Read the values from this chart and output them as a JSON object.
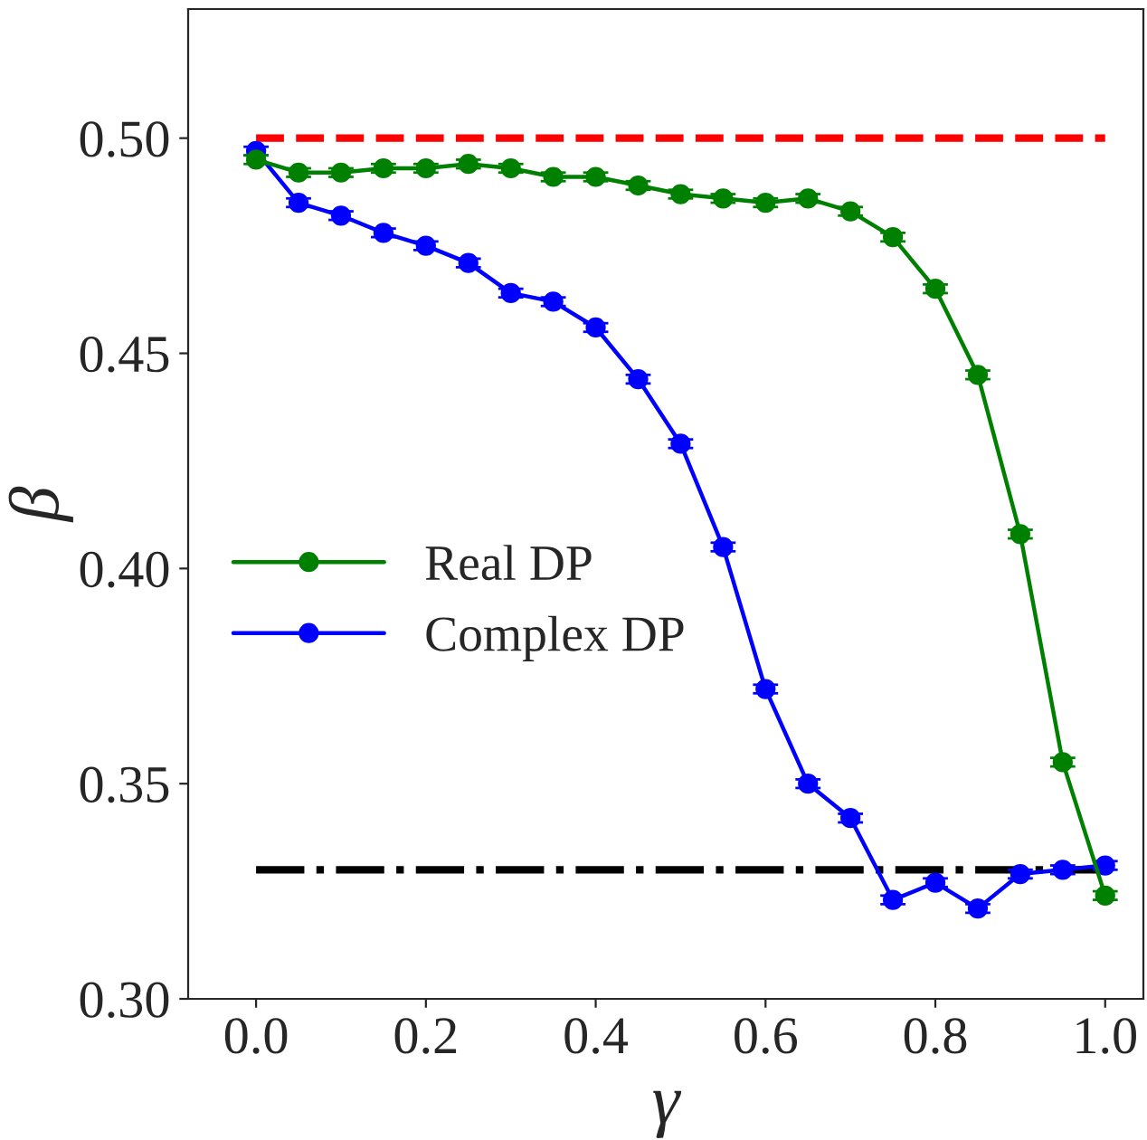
{
  "chart_data": {
    "type": "line",
    "xlabel": "γ",
    "ylabel": "β",
    "x": [
      0.0,
      0.05,
      0.1,
      0.15,
      0.2,
      0.25,
      0.3,
      0.35,
      0.4,
      0.45,
      0.5,
      0.55,
      0.6,
      0.65,
      0.7,
      0.75,
      0.8,
      0.85,
      0.9,
      0.95,
      1.0
    ],
    "series": [
      {
        "name": "Real DP",
        "color": "#008000",
        "values": [
          0.495,
          0.492,
          0.492,
          0.493,
          0.493,
          0.494,
          0.493,
          0.491,
          0.491,
          0.489,
          0.487,
          0.486,
          0.485,
          0.486,
          0.483,
          0.477,
          0.465,
          0.445,
          0.408,
          0.355,
          0.324
        ],
        "errors": [
          0.001,
          0.001,
          0.001,
          0.001,
          0.001,
          0.001,
          0.001,
          0.001,
          0.001,
          0.001,
          0.001,
          0.001,
          0.001,
          0.001,
          0.001,
          0.001,
          0.001,
          0.001,
          0.001,
          0.001,
          0.001
        ]
      },
      {
        "name": "Complex DP",
        "color": "#0000ff",
        "values": [
          0.497,
          0.485,
          0.482,
          0.478,
          0.475,
          0.471,
          0.464,
          0.462,
          0.456,
          0.444,
          0.429,
          0.405,
          0.372,
          0.35,
          0.342,
          0.323,
          0.327,
          0.321,
          0.329,
          0.33,
          0.331
        ],
        "errors": [
          0.001,
          0.001,
          0.001,
          0.001,
          0.001,
          0.001,
          0.001,
          0.001,
          0.001,
          0.001,
          0.001,
          0.001,
          0.001,
          0.001,
          0.001,
          0.001,
          0.001,
          0.001,
          0.001,
          0.001,
          0.001
        ]
      }
    ],
    "ref_lines": [
      {
        "axis": "y",
        "value": 0.5,
        "color": "#ff0000",
        "line_style": "dashed"
      },
      {
        "axis": "y",
        "value": 0.33,
        "color": "#000000",
        "line_style": "dashdot"
      }
    ],
    "xlim": [
      -0.08,
      1.045
    ],
    "ylim": [
      0.3,
      0.53
    ],
    "xticks": [
      {
        "value": 0.0,
        "label": "0.0"
      },
      {
        "value": 0.2,
        "label": "0.2"
      },
      {
        "value": 0.4,
        "label": "0.4"
      },
      {
        "value": 0.6,
        "label": "0.6"
      },
      {
        "value": 0.8,
        "label": "0.8"
      },
      {
        "value": 1.0,
        "label": "1.0"
      }
    ],
    "yticks": [
      {
        "value": 0.3,
        "label": "0.30"
      },
      {
        "value": 0.35,
        "label": "0.35"
      },
      {
        "value": 0.4,
        "label": "0.40"
      },
      {
        "value": 0.45,
        "label": "0.45"
      },
      {
        "value": 0.5,
        "label": "0.50"
      }
    ],
    "marker": "circle",
    "line_style": "solid",
    "grid": false,
    "legend": "center left"
  }
}
